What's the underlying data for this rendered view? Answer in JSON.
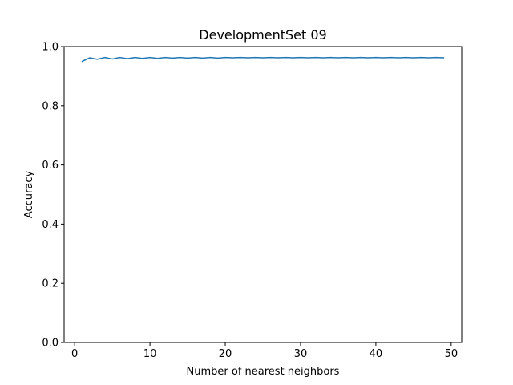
{
  "chart_data": {
    "type": "line",
    "title": "DevelopmentSet 09",
    "xlabel": "Number of nearest neighbors",
    "ylabel": "Accuracy",
    "xlim": [
      -1.4,
      51.4
    ],
    "ylim": [
      0.0,
      1.0
    ],
    "xticks": [
      0,
      10,
      20,
      30,
      40,
      50
    ],
    "yticks": [
      0.0,
      0.2,
      0.4,
      0.6,
      0.8,
      1.0
    ],
    "xtick_labels": [
      "0",
      "10",
      "20",
      "30",
      "40",
      "50"
    ],
    "ytick_labels": [
      "0.0",
      "0.2",
      "0.4",
      "0.6",
      "0.8",
      "1.0"
    ],
    "grid": false,
    "legend": "none",
    "series": [
      {
        "color": "#1f77b4",
        "x": [
          1,
          2,
          3,
          4,
          5,
          6,
          7,
          8,
          9,
          10,
          11,
          12,
          13,
          14,
          15,
          16,
          17,
          18,
          19,
          20,
          21,
          22,
          23,
          24,
          25,
          26,
          27,
          28,
          29,
          30,
          31,
          32,
          33,
          34,
          35,
          36,
          37,
          38,
          39,
          40,
          41,
          42,
          43,
          44,
          45,
          46,
          47,
          48,
          49
        ],
        "y": [
          0.95,
          0.962,
          0.957,
          0.963,
          0.958,
          0.963,
          0.959,
          0.963,
          0.96,
          0.963,
          0.96,
          0.963,
          0.961,
          0.963,
          0.961,
          0.963,
          0.961,
          0.963,
          0.961,
          0.963,
          0.962,
          0.963,
          0.962,
          0.963,
          0.962,
          0.963,
          0.962,
          0.963,
          0.962,
          0.963,
          0.962,
          0.963,
          0.962,
          0.963,
          0.962,
          0.963,
          0.962,
          0.963,
          0.962,
          0.963,
          0.962,
          0.963,
          0.962,
          0.963,
          0.962,
          0.963,
          0.962,
          0.963,
          0.962
        ]
      }
    ]
  }
}
